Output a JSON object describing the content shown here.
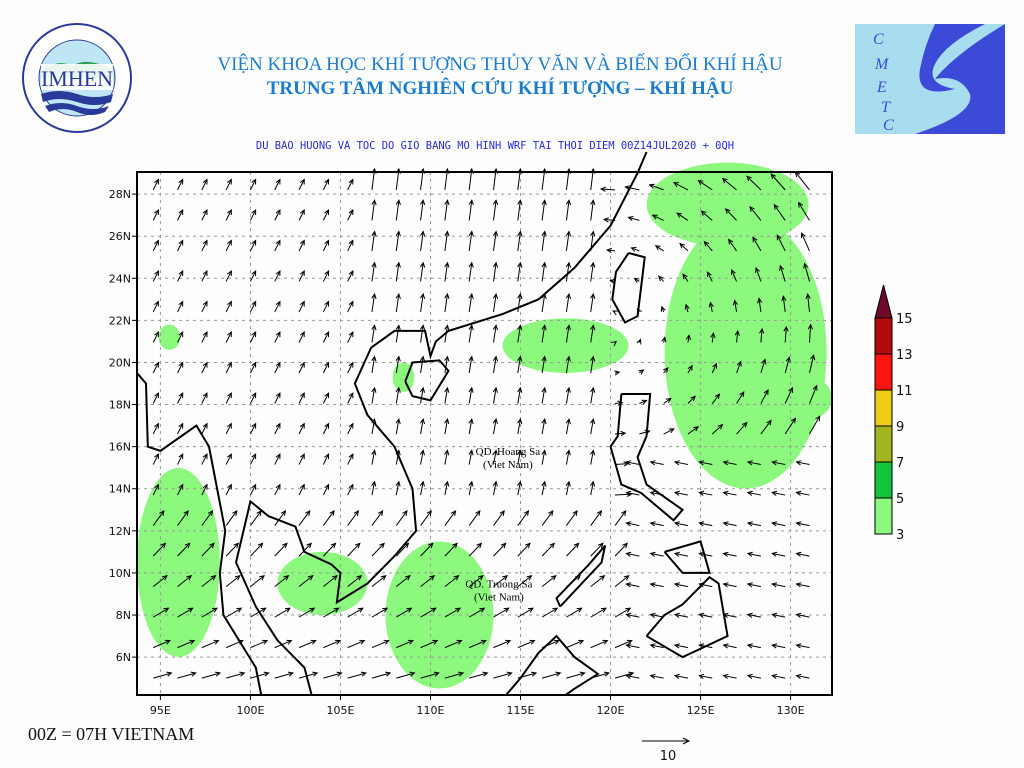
{
  "header": {
    "institute": "VIỆN KHOA HỌC KHÍ TƯỢNG THỦY VĂN VÀ BIẾN ĐỔI KHÍ HẬU",
    "center": "TRUNG TÂM NGHIÊN CỨU KHÍ TƯỢNG – KHÍ HẬU",
    "subtitle": "DU BAO HUONG VA TOC DO GIO BANG MO HINH WRF TAI THOI DIEM  00Z14JUL2020 + 0QH"
  },
  "logos": {
    "left": {
      "text": "IMHEN",
      "ring_top": "VIỆN KHOA HỌC",
      "ring_bottom": "KHÍ TƯỢNG THỦY VĂN VÀ BIẾN ĐỔI KHÍ HẬU"
    },
    "right": {
      "text": "CMETC",
      "colors": [
        "#a8dcef",
        "#3c4ad8"
      ]
    }
  },
  "map": {
    "lon_range": [
      93.7,
      132.3
    ],
    "lat_range": [
      4.2,
      29.05
    ],
    "lon_ticks": [
      "95E",
      "100E",
      "105E",
      "110E",
      "115E",
      "120E",
      "125E",
      "130E"
    ],
    "lon_tick_values": [
      95,
      100,
      105,
      110,
      115,
      120,
      125,
      130
    ],
    "lat_ticks": [
      "6N",
      "8N",
      "10N",
      "12N",
      "14N",
      "16N",
      "18N",
      "20N",
      "22N",
      "24N",
      "26N",
      "28N"
    ],
    "lat_tick_values": [
      6,
      8,
      10,
      12,
      14,
      16,
      18,
      20,
      22,
      24,
      26,
      28
    ],
    "grid": "dashed",
    "annotations": [
      {
        "line1": "QD. Hoang Sa",
        "line2": "(Viet Nam)",
        "lon": 114.3,
        "lat": 15.6
      },
      {
        "line1": "QD. Truong Sa",
        "line2": "(Viet Nam)",
        "lon": 113.8,
        "lat": 9.3
      }
    ],
    "shaded_areas": [
      {
        "lon": 127.5,
        "lat": 20.5,
        "rlon": 4.5,
        "rlat": 6.5
      },
      {
        "lon": 126.5,
        "lat": 27.5,
        "rlon": 4.5,
        "rlat": 2
      },
      {
        "lon": 117.5,
        "lat": 20.8,
        "rlon": 3.5,
        "rlat": 1.3
      },
      {
        "lon": 110.5,
        "lat": 8,
        "rlon": 3,
        "rlat": 3.5
      },
      {
        "lon": 104,
        "lat": 9.5,
        "rlon": 2.5,
        "rlat": 1.5
      },
      {
        "lon": 96,
        "lat": 10.5,
        "rlon": 2.3,
        "rlat": 4.5
      },
      {
        "lon": 131,
        "lat": 18.3,
        "rlon": 1.3,
        "rlat": 1
      },
      {
        "lon": 95.5,
        "lat": 21.2,
        "rlon": 0.6,
        "rlat": 0.6
      },
      {
        "lon": 108.5,
        "lat": 19.3,
        "rlon": 0.6,
        "rlat": 0.7
      }
    ]
  },
  "legend": {
    "labels": [
      "3",
      "5",
      "7",
      "9",
      "11",
      "13",
      "15"
    ],
    "colors": [
      "#8cf97e",
      "#14c43c",
      "#a2b520",
      "#edcc14",
      "#fb1410",
      "#b40a0a",
      "#6e0a28"
    ]
  },
  "reference_vector": {
    "label": "10"
  },
  "footnote": "00Z = 07H VIETNAM"
}
